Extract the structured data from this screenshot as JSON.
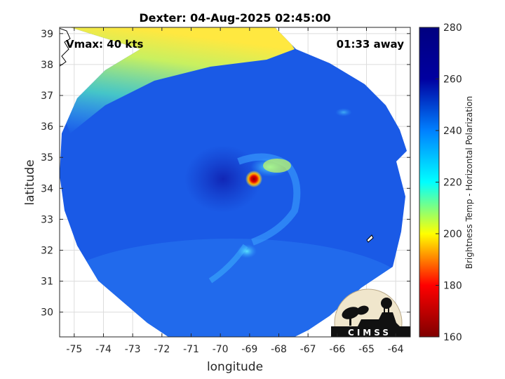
{
  "chart_data": {
    "type": "heatmap",
    "title": "Dexter: 04-Aug-2025 02:45:00",
    "xlabel": "longitude",
    "ylabel": "latitude",
    "xlim": [
      -75.5,
      -63.5
    ],
    "ylim": [
      29.2,
      39.2
    ],
    "xticks": [
      -75,
      -74,
      -73,
      -72,
      -71,
      -70,
      -69,
      -68,
      -67,
      -66,
      -65,
      -64
    ],
    "yticks": [
      30,
      31,
      32,
      33,
      34,
      35,
      36,
      37,
      38,
      39
    ],
    "grid": true,
    "annotations": {
      "vmax": "Vmax: 40 kts",
      "time_away": "01:33 away"
    },
    "colorbar": {
      "label": "Brightness Temp - Horizontal Polarization",
      "min": 160,
      "max": 280,
      "ticks": [
        160,
        180,
        200,
        220,
        240,
        260,
        280
      ],
      "colormap": [
        "#7f0000",
        "#ff0000",
        "#ffff00",
        "#00ffff",
        "#0080ff",
        "#0000a0",
        "#000080"
      ]
    },
    "storm_center": {
      "lon": -68.7,
      "lat": 34.3,
      "min_brightness_temp": 165
    },
    "swath_center": {
      "lon": -69.9,
      "lat": 33.9
    },
    "logo": "CIMSS"
  },
  "colors": {
    "swath_background": "#1a5ae6",
    "outside_background": "#ffffff",
    "grid": "#dcdcdc"
  }
}
